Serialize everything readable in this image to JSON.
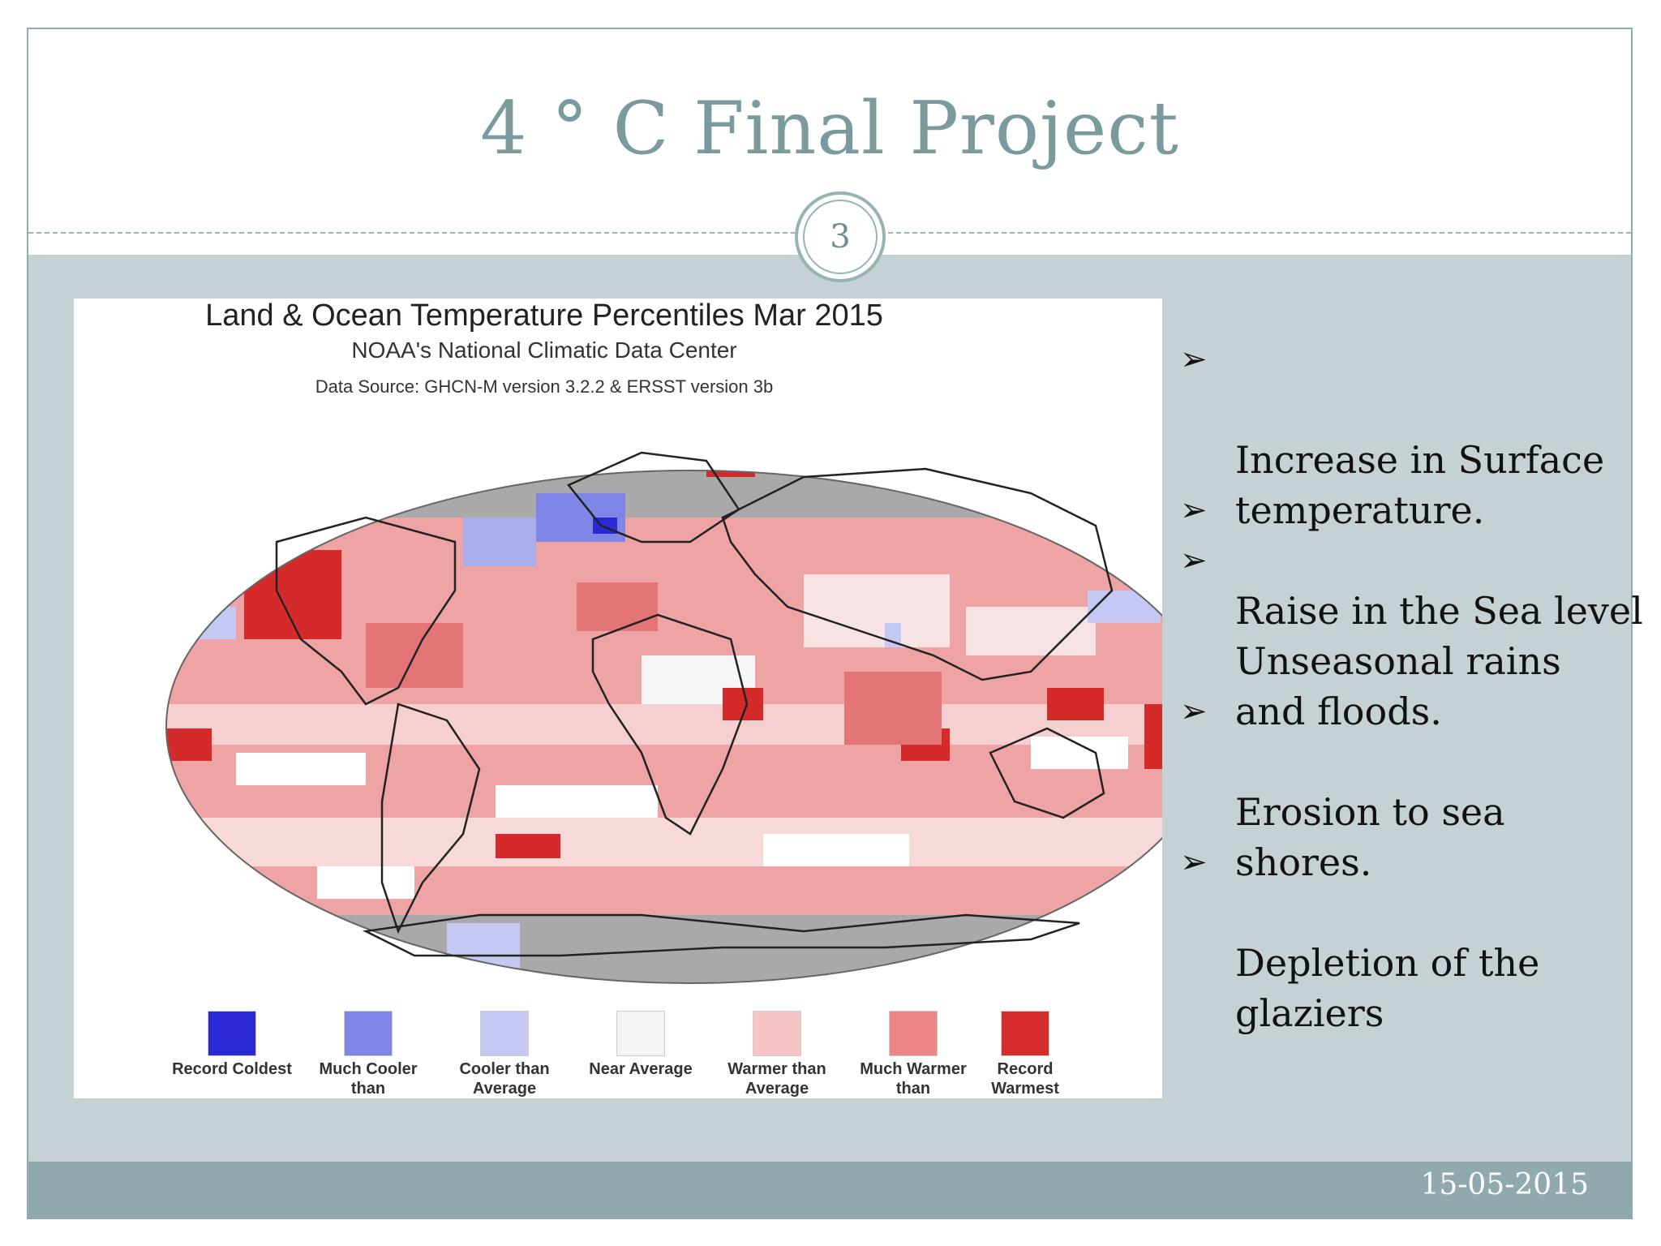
{
  "slide": {
    "title": "4 ° C  Final Project",
    "page_number": "3",
    "date": "15-05-2015"
  },
  "figure": {
    "title": "Land & Ocean Temperature Percentiles Mar 2015",
    "subtitle": "NOAA's National Climatic Data Center",
    "source": "Data Source: GHCN-M version 3.2.2 & ERSST version 3b",
    "legend": [
      {
        "label": "Record Coldest",
        "color": "#2a2ad4"
      },
      {
        "label": "Much Cooler than",
        "color": "#7f86e6"
      },
      {
        "label": "Cooler than Average",
        "color": "#c4c8f3"
      },
      {
        "label": "Near Average",
        "color": "#f4f4f6"
      },
      {
        "label": "Warmer than Average",
        "color": "#f7c4c6"
      },
      {
        "label": "Much Warmer than",
        "color": "#ec8585"
      },
      {
        "label": "Record Warmest",
        "color": "#d52b2b"
      }
    ]
  },
  "bullets": [
    {
      "text": "Increase in Surface\ntemperature."
    },
    {
      "text": "Raise in the Sea level"
    },
    {
      "text": "Unseasonal rains\nand floods."
    },
    {
      "text": "Erosion to sea\nshores."
    },
    {
      "text": "Depletion of the\nglaziers"
    }
  ],
  "bullet_marker": "➢"
}
